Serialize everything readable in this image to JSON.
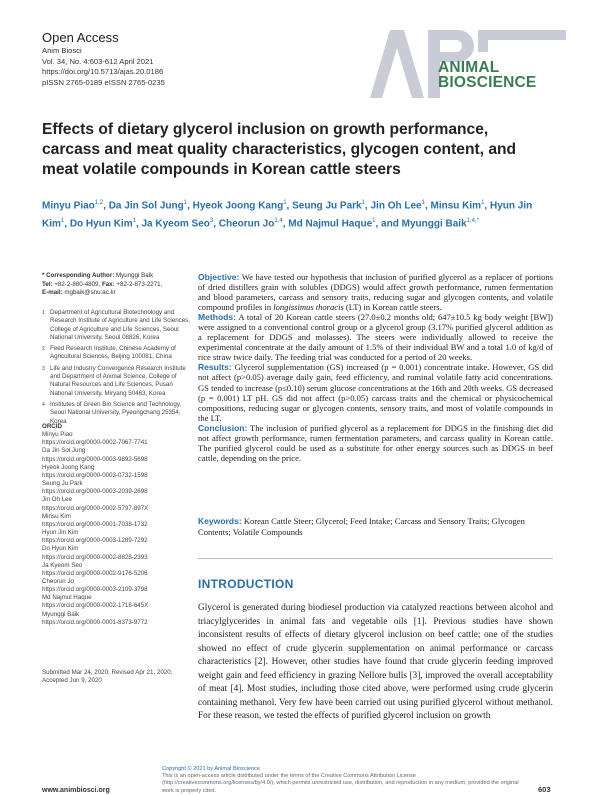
{
  "header": {
    "open_access": "Open Access",
    "journal": "Anim Biosci",
    "volume": "Vol. 34, No. 4:603-612 April 2021",
    "doi": "https://doi.org/10.5713/ajas.20.0186",
    "issn": "pISSN 2765-0189 eISSN 2765-0235"
  },
  "logo": {
    "line1": "ANIMAL",
    "line2": "BIOSCIENCE",
    "color": "#3a7d55",
    "mark_color": "#c9ccd6"
  },
  "title": "Effects of dietary glycerol inclusion on growth performance, carcass and meat quality characteristics, glycogen content, and meat volatile compounds in Korean cattle steers",
  "authors": [
    {
      "name": "Minyu Piao",
      "sup": "1,2"
    },
    {
      "name": "Da Jin Sol Jung",
      "sup": "1"
    },
    {
      "name": "Hyeok Joong Kang",
      "sup": "1"
    },
    {
      "name": "Seung Ju Park",
      "sup": "1"
    },
    {
      "name": "Jin Oh Lee",
      "sup": "1"
    },
    {
      "name": "Minsu Kim",
      "sup": "1"
    },
    {
      "name": "Hyun Jin Kim",
      "sup": "1"
    },
    {
      "name": "Do Hyun Kim",
      "sup": "1"
    },
    {
      "name": "Ja Kyeom Seo",
      "sup": "3"
    },
    {
      "name": "Cheorun Jo",
      "sup": "1,4"
    },
    {
      "name": "Md Najmul Haque",
      "sup": "1"
    },
    {
      "name": "Myunggi Baik",
      "sup": "1,4,*"
    }
  ],
  "corresponding": {
    "label": "* Corresponding Author:",
    "name": "Myunggi Baik",
    "tel_label": "Tel:",
    "tel": "+82-2-880-4809,",
    "fax_label": "Fax:",
    "fax": "+82-2-873-2271,",
    "email_label": "E-mail:",
    "email": "mgbaik@snu.ac.kr"
  },
  "affiliations": [
    {
      "n": "1",
      "text": "Department of Agricultural Biotechnology and Research Institute of Agriculture and Life Sciences, College of Agriculture and Life Sciences, Seoul National University, Seoul 08826, Korea"
    },
    {
      "n": "2",
      "text": "Feed Research Institute, Chinese Academy of Agricultural Sciences, Beijing 100081, China"
    },
    {
      "n": "3",
      "text": "Life and Industry Convergence Research Institute and Department of Animal Science, College of Natural Resources and Life Sciences, Pusan National University, Miryang 50463, Korea"
    },
    {
      "n": "4",
      "text": "Institutes of Green Bio Science and Technology, Seoul National University, Pyeongchang 25354, Korea"
    }
  ],
  "orcid": {
    "heading": "ORCID",
    "entries": [
      {
        "name": "Minyu Piao",
        "id": "https://orcid.org/0000-0002-7067-7741"
      },
      {
        "name": "Da Jin Sol Jung",
        "id": "https://orcid.org/0000-0003-9892-5698"
      },
      {
        "name": "Hyeok Joong Kang",
        "id": "https://orcid.org/0000-0003-0732-1598"
      },
      {
        "name": "Seung Ju Park",
        "id": "https://orcid.org/0000-0003-2039-2698"
      },
      {
        "name": "Jin Oh Lee",
        "id": "https://orcid.org/0000-0002-5797-897X"
      },
      {
        "name": "Minsu Kim",
        "id": "https://orcid.org/0000-0001-7038-1732"
      },
      {
        "name": "Hyun Jin Kim",
        "id": "https://orcid.org/0000-0003-1289-7292"
      },
      {
        "name": "Do Hyun Kim",
        "id": "https://orcid.org/0000-0002-8828-2393"
      },
      {
        "name": "Ja Kyeom Seo",
        "id": "https://orcid.org/0000-0002-9176-5206"
      },
      {
        "name": "Cheorun Jo",
        "id": "https://orcid.org/0000-0003-2109-3798"
      },
      {
        "name": "Md Najmul Haque",
        "id": "https://orcid.org/0000-0002-1718-645X"
      },
      {
        "name": "Myunggi Baik",
        "id": "https://orcid.org/0000-0001-8373-9772"
      }
    ]
  },
  "dates": {
    "line1": "Submitted Mar 24, 2020; Revised Apr 21, 2020;",
    "line2": "Accepted Jun 9, 2020"
  },
  "abstract": {
    "objective_label": "Objective:",
    "objective": "We have tested our hypothesis that inclusion of purified glycerol as a replacer of portions of dried distillers grain with solubles (DDGS) would affect growth performance, rumen fermentation and blood parameters, carcass and sensory traits, reducing sugar and glycogen contents, and volatile compound profiles in ",
    "objective_italic": "longissimus thoracis",
    "objective_end": " (LT) in Korean cattle steers.",
    "methods_label": "Methods:",
    "methods": "A total of 20 Korean cattle steers (27.0±0.2 months old; 647±10.5 kg body weight [BW]) were assigned to a conventional control group or a glycerol group (3.17% purified glycerol addition as a replacement for DDGS and molasses). The steers were individually allowed to receive the experimental concentrate at the daily amount of 1.5% of their individual BW and a total 1.0 of kg/d of rice straw twice daily. The feeding trial was conducted for a period of 20 weeks.",
    "results_label": "Results:",
    "results": "Glycerol supplementation (GS) increased (p = 0.001) concentrate intake. However, GS did not affect (p>0.05) average daily gain, feed efficiency, and ruminal volatile fatty acid concentrations. GS tended to increase (p≤0.10) serum glucose concentrations at the 16th and 20th weeks. GS decreased (p = 0.001) LT pH. GS did not affect (p>0.05) carcass traits and the chemical or physicochemical compositions, reducing sugar or glycogen contents, sensory traits, and most of volatile compounds in the LT.",
    "conclusion_label": "Conclusion:",
    "conclusion": "The inclusion of purified glycerol as a replacement for DDGS in the finishing diet did not affect growth performance, rumen fermentation parameters, and carcass quality in Korean cattle. The purified glycerol could be used as a substitute for other energy sources such as DDGS in beef cattle, depending on the price."
  },
  "keywords": {
    "label": "Keywords:",
    "text": "Korean Cattle Steer; Glycerol; Feed Intake; Carcass and Sensory Traits; Glycogen Contents; Volatile Compounds"
  },
  "introduction": {
    "heading": "INTRODUCTION",
    "text": "Glycerol is generated during biodiesel production via catalyzed reactions between alcohol and triacylglycerides in animal fats and vegetable oils [1]. Previous studies have shown inconsistent results of effects of dietary glycerol inclusion on beef cattle; one of the studies showed no effect of crude glycerin supplementation on animal performance or carcass characteristics [2]. However, other studies have found that crude glycerin feeding improved weight gain and feed efficiency in grazing Nellore bulls [3], improved the overall acceptability of meat [4]. Most studies, including those cited above, were performed using crude glycerin containing methanol. Very few have been carried out using purified glycerol without methanol. For these reason, we tested the effects of purified glycerol inclusion on growth"
  },
  "footer": {
    "copyright": "Copyright © 2021 by Animal Bioscience",
    "license": "This is an open-access article distributed under the terms of the Creative Commons Attribution License (http://creativecommons.org/licenses/by/4.0/), which permits unrestricted use, distribution, and reproduction in any medium, provided the original work is properly cited.",
    "url": "www.animbiosci.org",
    "page": "603"
  }
}
